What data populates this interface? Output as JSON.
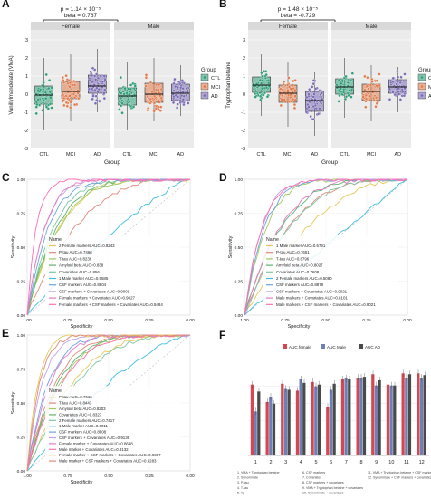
{
  "colors": {
    "ctl": "#2e9e78",
    "mci": "#e07b4b",
    "ad": "#7b6bb3",
    "strip": "#d9d9d9",
    "panel_bg": "#ebebeb",
    "grid": "#ffffff",
    "roc": [
      "#e5c85a",
      "#e08a7a",
      "#9ecb5a",
      "#5bb56e",
      "#7fc6a5",
      "#3fbfe0",
      "#6aa3df",
      "#c2a3e6",
      "#e67ac6",
      "#ff6fb0"
    ],
    "bar_female": "#d8474f",
    "bar_male": "#6c7fb6",
    "bar_ad": "#4a4a4a"
  },
  "chart_data": [
    {
      "panel": "A",
      "type": "box-dot",
      "annotation": [
        "p = 1.14 × 10⁻⁵",
        "beta = 0.767"
      ],
      "facets": [
        "Female",
        "Male"
      ],
      "categories": [
        "CTL",
        "MCI",
        "AD"
      ],
      "xlabel": "Group",
      "ylabel": "Vanillylmandelate (VMA)",
      "ylim": [
        -3,
        3.4
      ],
      "yticks": [
        "-3",
        "-2",
        "-1",
        "0",
        "1",
        "2",
        "3"
      ],
      "legend_title": "Group",
      "legend": [
        "CTL",
        "MCI",
        "AD"
      ],
      "boxes": {
        "Female": [
          {
            "q1": -0.55,
            "median": -0.05,
            "q3": 0.45,
            "lo": -2.0,
            "hi": 2.0
          },
          {
            "q1": -0.25,
            "median": 0.15,
            "q3": 0.7,
            "lo": -1.5,
            "hi": 2.2
          },
          {
            "q1": 0.05,
            "median": 0.45,
            "q3": 1.05,
            "lo": -1.0,
            "hi": 2.5
          }
        ],
        "Male": [
          {
            "q1": -0.6,
            "median": -0.1,
            "q3": 0.35,
            "lo": -2.0,
            "hi": 1.8
          },
          {
            "q1": -0.45,
            "median": 0.0,
            "q3": 0.6,
            "lo": -1.5,
            "hi": 2.0
          },
          {
            "q1": -0.35,
            "median": 0.05,
            "q3": 0.55,
            "lo": -1.2,
            "hi": 1.6
          }
        ]
      }
    },
    {
      "panel": "B",
      "type": "box-dot",
      "annotation": [
        "p = 1.48 × 10⁻⁵",
        "beta = -0.729"
      ],
      "facets": [
        "Female",
        "Male"
      ],
      "categories": [
        "CTL",
        "MCI",
        "AD"
      ],
      "xlabel": "Group",
      "ylabel": "Tryptophan betaine",
      "ylim": [
        -3,
        3.4
      ],
      "yticks": [
        "-3",
        "-2",
        "-1",
        "0",
        "1",
        "2",
        "3"
      ],
      "legend_title": "Group",
      "legend": [
        "CTL",
        "MCI",
        "AD"
      ],
      "boxes": {
        "Female": [
          {
            "q1": 0.1,
            "median": 0.5,
            "q3": 0.95,
            "lo": -1.2,
            "hi": 2.2
          },
          {
            "q1": -0.45,
            "median": 0.05,
            "q3": 0.5,
            "lo": -1.8,
            "hi": 1.8
          },
          {
            "q1": -0.95,
            "median": -0.35,
            "q3": 0.15,
            "lo": -2.3,
            "hi": 1.2
          }
        ],
        "Male": [
          {
            "q1": 0.0,
            "median": 0.4,
            "q3": 0.85,
            "lo": -1.3,
            "hi": 2.0
          },
          {
            "q1": -0.35,
            "median": 0.15,
            "q3": 0.55,
            "lo": -1.5,
            "hi": 1.6
          },
          {
            "q1": 0.05,
            "median": 0.4,
            "q3": 0.8,
            "lo": -1.0,
            "hi": 1.5
          }
        ]
      }
    },
    {
      "panel": "C",
      "type": "line",
      "xlabel": "Specificity",
      "ylabel": "Sensitivity",
      "xticks": [
        "1.00",
        "0.75",
        "0.50",
        "0.25",
        "0.00"
      ],
      "yticks": [
        "0.00",
        "0.25",
        "0.50",
        "0.75",
        "1.00"
      ],
      "legend_title": "Name",
      "legend": [
        "2 Female markers AUC=0.8243",
        "P-tau AUC=0.7466",
        "T-tau AUC=0.8236",
        "Amyloid beta AUC=0.838",
        "Covariates AUC=0.856",
        "1 Male marker AUC=0.5585",
        "CSF markers AUC=0.8804",
        "CSF markers + Covariates AUC=0.9001",
        "Female markers + Covariates AUC=0.9027",
        "Female markers + CSF markers + Covariates AUC=0.9484"
      ]
    },
    {
      "panel": "D",
      "type": "line",
      "xlabel": "Specificity",
      "ylabel": "Sensitivity",
      "xticks": [
        "1.00",
        "0.75",
        "0.50",
        "0.25",
        "0.00"
      ],
      "yticks": [
        "0.00",
        "0.25",
        "0.50",
        "0.75",
        "1.00"
      ],
      "legend_title": "Name",
      "legend": [
        "1 Male marker AUC=0.6791",
        "P-tau AUC=0.7651",
        "T-tau AUC=0.8796",
        "Amyloid beta AUC=0.8027",
        "Covariates AUC=0.7608",
        "2 Female markers AUC=0.5080",
        "CSF markers AUC=0.8878",
        "CSF markers + Covariates AUC=0.9021",
        "Male markers + Covariates AUC=0.8101",
        "Male markers + CSF markers + Covariates AUC=0.9021"
      ]
    },
    {
      "panel": "E",
      "type": "line",
      "xlabel": "Specificity",
      "ylabel": "Sensitivity",
      "xticks": [
        "1.00",
        "0.75",
        "0.50",
        "0.25",
        "0.00"
      ],
      "yticks": [
        "0.00",
        "0.25",
        "0.50",
        "0.75",
        "1.00"
      ],
      "legend_title": "Name",
      "legend": [
        "P-tau AUC=0.7616",
        "T-tau AUC=0.8443",
        "Amyloid beta AUC=0.8203",
        "Covariates AUC=0.8327",
        "2 Female markers AUC=0.7417",
        "1 Male marker AUC=0.6011",
        "CSF markers AUC=0.8808",
        "CSF markers + Covariates AUC=0.9136",
        "Female marker + Covariates AUC=0.8698",
        "Male marker + Covariates AUC=0.8132",
        "Female marker + CSF markers + Covariates AUC=0.9387",
        "Male marker + CSF markers + Covariates AUC=0.9283"
      ]
    },
    {
      "panel": "F",
      "type": "bar",
      "legend": [
        "AUC female",
        "AUC Male",
        "AUC AD"
      ],
      "categories": [
        "1",
        "2",
        "3",
        "4",
        "5",
        "6",
        "7",
        "8",
        "9",
        "10",
        "11",
        "12"
      ],
      "ylim": [
        0,
        1.1
      ],
      "series": [
        {
          "name": "AUC female",
          "values": [
            0.82,
            0.62,
            0.83,
            0.75,
            0.85,
            0.56,
            0.88,
            0.9,
            0.94,
            0.82,
            0.95,
            0.95
          ]
        },
        {
          "name": "AUC Male",
          "values": [
            0.51,
            0.68,
            0.77,
            0.88,
            0.8,
            0.76,
            0.89,
            0.9,
            0.81,
            0.81,
            0.9,
            0.9
          ]
        },
        {
          "name": "AUC AD",
          "values": [
            0.74,
            0.6,
            0.76,
            0.84,
            0.82,
            0.83,
            0.88,
            0.91,
            0.87,
            0.81,
            0.94,
            0.93
          ]
        }
      ],
      "footnotes": [
        [
          "1. VMA + Tryptophan betaine",
          "2. Synonimate",
          "3. P-tau",
          "4. T-tau",
          "5. Aβ"
        ],
        [
          "6. CSF markers",
          "7. Covariates",
          "8. CSF markers + covariates",
          "9. VMA + Tryptophan betaine + covariates",
          "10. Synonimate + covariates"
        ],
        [
          "11. VMA + Tryptophan betaine + CSF markers + covariates",
          "12. Synonimate + CSF markers + covariates",
          "",
          "",
          ""
        ]
      ]
    }
  ]
}
